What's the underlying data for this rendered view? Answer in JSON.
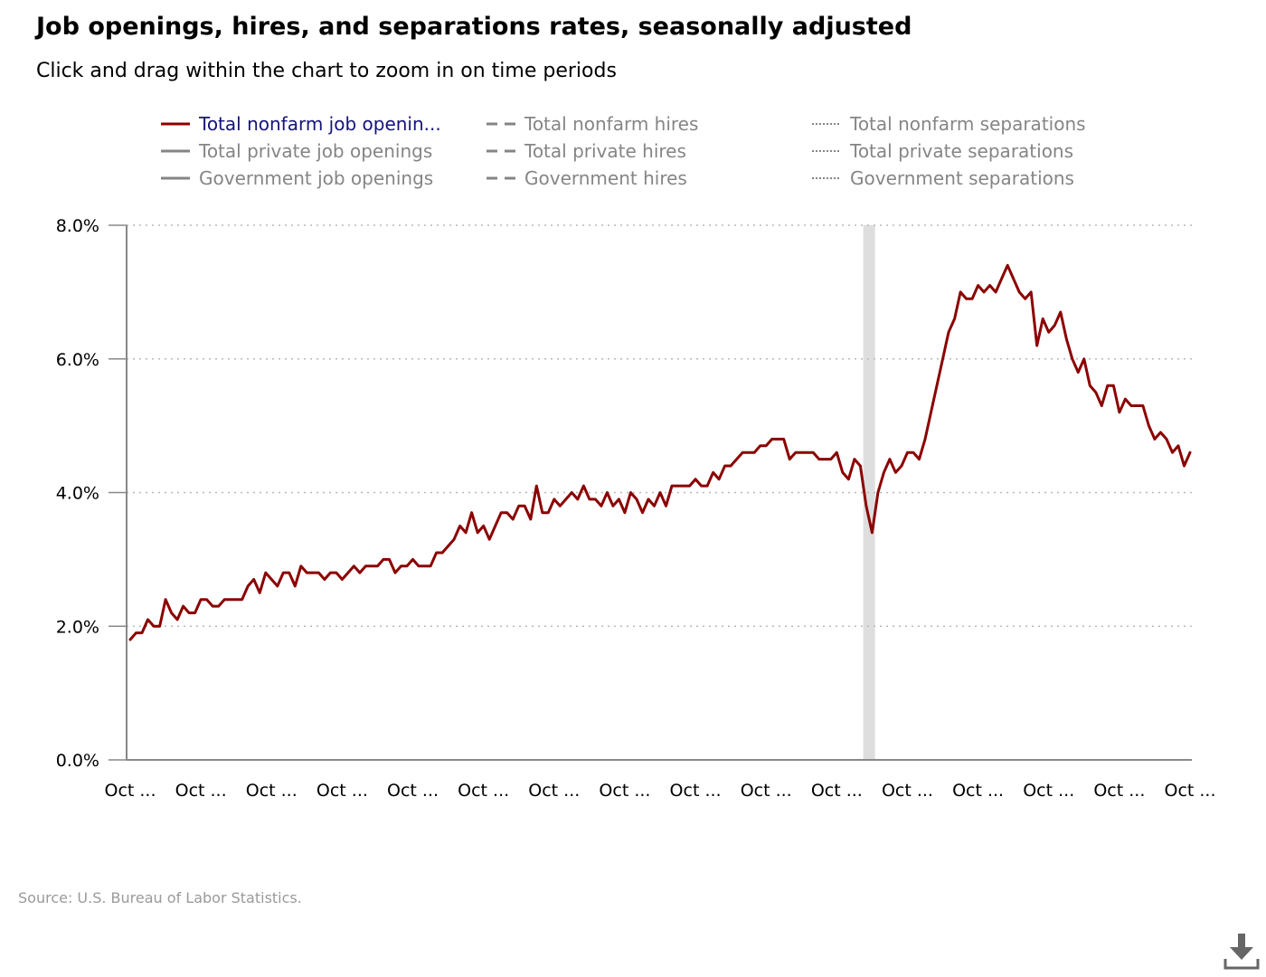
{
  "title": "Job openings, hires, and separations rates, seasonally adjusted",
  "subtitle": "Click and drag within the chart to zoom in on time periods",
  "source": "Source: U.S. Bureau of Labor Statistics.",
  "download_icon": "download-icon",
  "colors": {
    "series_active": "#8b0000",
    "legend_inactive": "#858585",
    "legend_active_text": "#14147a",
    "grid": "#b8b8b8",
    "axis": "#888888",
    "recession": "#dedede"
  },
  "legend": [
    {
      "label": "Total nonfarm job openin...",
      "style": "solid",
      "active": true
    },
    {
      "label": "Total nonfarm hires",
      "style": "dashed",
      "active": false
    },
    {
      "label": "Total nonfarm separations",
      "style": "dotted",
      "active": false
    },
    {
      "label": "Total private job openings",
      "style": "solid",
      "active": false
    },
    {
      "label": "Total private hires",
      "style": "dashed",
      "active": false
    },
    {
      "label": "Total private separations",
      "style": "dotted",
      "active": false
    },
    {
      "label": "Government job openings",
      "style": "solid",
      "active": false
    },
    {
      "label": "Government hires",
      "style": "dashed",
      "active": false
    },
    {
      "label": "Government separations",
      "style": "dotted",
      "active": false
    }
  ],
  "chart_data": {
    "type": "line",
    "title": "Job openings, hires, and separations rates, seasonally adjusted",
    "subtitle": "Click and drag within the chart to zoom in on time periods",
    "y_ticks": [
      "0.0%",
      "2.0%",
      "4.0%",
      "6.0%",
      "8.0%"
    ],
    "y_tick_values": [
      0,
      2,
      4,
      6,
      8
    ],
    "ylim": [
      0,
      8
    ],
    "grid": "horizontal dotted",
    "x_ticks": [
      "Oct ...",
      "Oct ...",
      "Oct ...",
      "Oct ...",
      "Oct ...",
      "Oct ...",
      "Oct ...",
      "Oct ...",
      "Oct ...",
      "Oct ...",
      "Oct ...",
      "Oct ...",
      "Oct ...",
      "Oct ...",
      "Oct ...",
      "Oct ..."
    ],
    "x_tick_index": [
      0,
      12,
      24,
      36,
      48,
      60,
      72,
      84,
      96,
      108,
      120,
      132,
      144,
      156,
      168,
      180
    ],
    "xlim_index": [
      0,
      180
    ],
    "recession_index": [
      124.5,
      126.5
    ],
    "series": [
      {
        "name": "Total nonfarm job openin...",
        "values": [
          1.8,
          1.9,
          1.9,
          2.1,
          2.0,
          2.0,
          2.4,
          2.2,
          2.1,
          2.3,
          2.2,
          2.2,
          2.4,
          2.4,
          2.3,
          2.3,
          2.4,
          2.4,
          2.4,
          2.4,
          2.6,
          2.7,
          2.5,
          2.8,
          2.7,
          2.6,
          2.8,
          2.8,
          2.6,
          2.9,
          2.8,
          2.8,
          2.8,
          2.7,
          2.8,
          2.8,
          2.7,
          2.8,
          2.9,
          2.8,
          2.9,
          2.9,
          2.9,
          3.0,
          3.0,
          2.8,
          2.9,
          2.9,
          3.0,
          2.9,
          2.9,
          2.9,
          3.1,
          3.1,
          3.2,
          3.3,
          3.5,
          3.4,
          3.7,
          3.4,
          3.5,
          3.3,
          3.5,
          3.7,
          3.7,
          3.6,
          3.8,
          3.8,
          3.6,
          4.1,
          3.7,
          3.7,
          3.9,
          3.8,
          3.9,
          4.0,
          3.9,
          4.1,
          3.9,
          3.9,
          3.8,
          4.0,
          3.8,
          3.9,
          3.7,
          4.0,
          3.9,
          3.7,
          3.9,
          3.8,
          4.0,
          3.8,
          4.1,
          4.1,
          4.1,
          4.1,
          4.2,
          4.1,
          4.1,
          4.3,
          4.2,
          4.4,
          4.4,
          4.5,
          4.6,
          4.6,
          4.6,
          4.7,
          4.7,
          4.8,
          4.8,
          4.8,
          4.5,
          4.6,
          4.6,
          4.6,
          4.6,
          4.5,
          4.5,
          4.5,
          4.6,
          4.3,
          4.2,
          4.5,
          4.4,
          3.8,
          3.4,
          4.0,
          4.3,
          4.5,
          4.3,
          4.4,
          4.6,
          4.6,
          4.5,
          4.8,
          5.2,
          5.6,
          6.0,
          6.4,
          6.6,
          7.0,
          6.9,
          6.9,
          7.1,
          7.0,
          7.1,
          7.0,
          7.2,
          7.4,
          7.2,
          7.0,
          6.9,
          7.0,
          6.2,
          6.6,
          6.4,
          6.5,
          6.7,
          6.3,
          6.0,
          5.8,
          6.0,
          5.6,
          5.5,
          5.3,
          5.6,
          5.6,
          5.2,
          5.4,
          5.3,
          5.3,
          5.3,
          5.0,
          4.8,
          4.9,
          4.8,
          4.6,
          4.7,
          4.4,
          4.6
        ]
      }
    ]
  }
}
